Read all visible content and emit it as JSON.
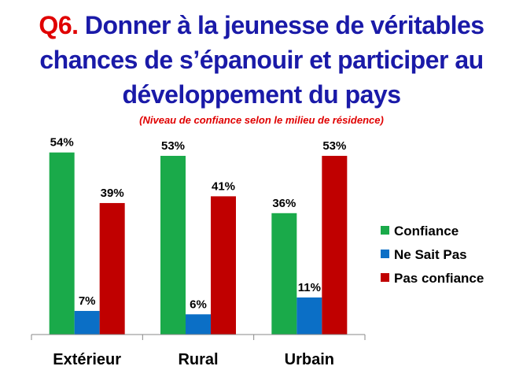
{
  "header": {
    "question_number": "Q6.",
    "title": "Donner à la jeunesse de véritables chances de s’épanouir et participer au développement du pays",
    "subtitle": "(Niveau de confiance selon le milieu de résidence)"
  },
  "chart_data": {
    "type": "bar",
    "categories": [
      "Extérieur",
      "Rural",
      "Urbain"
    ],
    "series": [
      {
        "name": "Confiance",
        "values": [
          54,
          53,
          36
        ],
        "labels": [
          "54%",
          "53%",
          "36%"
        ],
        "color": "#1aaa4a"
      },
      {
        "name": "Ne Sait Pas",
        "values": [
          7,
          6,
          11
        ],
        "labels": [
          "7%",
          "6%",
          "11%"
        ],
        "color": "#0b6fc6"
      },
      {
        "name": "Pas confiance",
        "values": [
          39,
          41,
          53
        ],
        "labels": [
          "39%",
          "41%",
          "53%"
        ],
        "color": "#c00000"
      }
    ],
    "ylim": [
      0,
      60
    ],
    "grid": false,
    "legend_position": "right"
  }
}
